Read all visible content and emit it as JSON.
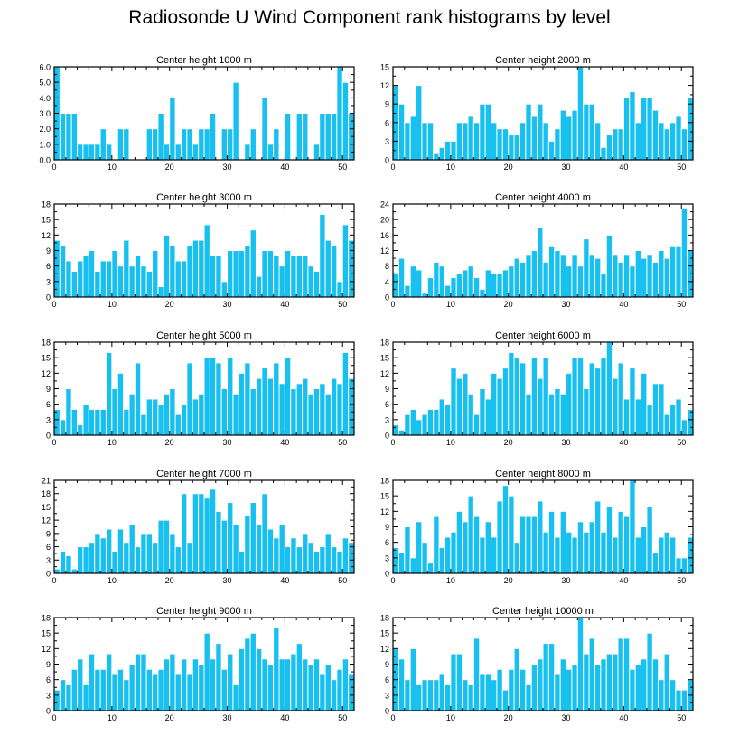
{
  "title": "Radiosonde U Wind Component rank histograms by level",
  "colors": {
    "bar": "#18c0f0",
    "bar_edge": "#ffffff",
    "axis": "#000000"
  },
  "chart_data": [
    {
      "type": "bar",
      "title": "Center height 1000 m",
      "xlim": [
        0,
        52
      ],
      "ylim": [
        0,
        6
      ],
      "xticks": [
        0,
        10,
        20,
        30,
        40,
        50
      ],
      "yticks": [
        0,
        1,
        2,
        3,
        4,
        5,
        6
      ],
      "ytick_labels": [
        "0.0",
        "1.0",
        "2.0",
        "3.0",
        "4.0",
        "5.0",
        "6.0"
      ],
      "x": [
        0,
        1,
        2,
        3,
        4,
        5,
        6,
        7,
        8,
        9,
        10,
        11,
        12,
        13,
        14,
        15,
        16,
        17,
        18,
        19,
        20,
        21,
        22,
        23,
        24,
        25,
        26,
        27,
        28,
        29,
        30,
        31,
        32,
        33,
        34,
        35,
        36,
        37,
        38,
        39,
        40,
        41,
        42,
        43,
        44,
        45,
        46,
        47,
        48,
        49,
        50,
        51
      ],
      "values": [
        6,
        3,
        3,
        3,
        1,
        1,
        1,
        1,
        2,
        1,
        0,
        2,
        2,
        0,
        0,
        0,
        2,
        2,
        3,
        1,
        4,
        1,
        2,
        2,
        1,
        2,
        2,
        3,
        0,
        2,
        2,
        5,
        0,
        1,
        2,
        0,
        4,
        1,
        2,
        0,
        3,
        0,
        3,
        3,
        0,
        1,
        3,
        3,
        3,
        6,
        5,
        3
      ]
    },
    {
      "type": "bar",
      "title": "Center height 2000 m",
      "xlim": [
        0,
        52
      ],
      "ylim": [
        0,
        15
      ],
      "xticks": [
        0,
        10,
        20,
        30,
        40,
        50
      ],
      "yticks": [
        0,
        3,
        6,
        9,
        12,
        15
      ],
      "ytick_labels": [
        "0",
        "3",
        "6",
        "9",
        "12",
        "15"
      ],
      "x": [
        0,
        1,
        2,
        3,
        4,
        5,
        6,
        7,
        8,
        9,
        10,
        11,
        12,
        13,
        14,
        15,
        16,
        17,
        18,
        19,
        20,
        21,
        22,
        23,
        24,
        25,
        26,
        27,
        28,
        29,
        30,
        31,
        32,
        33,
        34,
        35,
        36,
        37,
        38,
        39,
        40,
        41,
        42,
        43,
        44,
        45,
        46,
        47,
        48,
        49,
        50,
        51
      ],
      "values": [
        12,
        9,
        6,
        7,
        12,
        6,
        6,
        1,
        2,
        3,
        3,
        6,
        6,
        7,
        6,
        9,
        9,
        6,
        5,
        5,
        4,
        4,
        6,
        9,
        7,
        9,
        6,
        3,
        5,
        8,
        7,
        8,
        15,
        9,
        9,
        6,
        2,
        4,
        5,
        5,
        10,
        11,
        6,
        10,
        10,
        8,
        6,
        5,
        6,
        7,
        5,
        10
      ]
    },
    {
      "type": "bar",
      "title": "Center height 3000 m",
      "xlim": [
        0,
        52
      ],
      "ylim": [
        0,
        18
      ],
      "xticks": [
        0,
        10,
        20,
        30,
        40,
        50
      ],
      "yticks": [
        0,
        3,
        6,
        9,
        12,
        15,
        18
      ],
      "ytick_labels": [
        "0",
        "3",
        "6",
        "9",
        "12",
        "15",
        "18"
      ],
      "x": [
        0,
        1,
        2,
        3,
        4,
        5,
        6,
        7,
        8,
        9,
        10,
        11,
        12,
        13,
        14,
        15,
        16,
        17,
        18,
        19,
        20,
        21,
        22,
        23,
        24,
        25,
        26,
        27,
        28,
        29,
        30,
        31,
        32,
        33,
        34,
        35,
        36,
        37,
        38,
        39,
        40,
        41,
        42,
        43,
        44,
        45,
        46,
        47,
        48,
        49,
        50,
        51
      ],
      "values": [
        11,
        10,
        7,
        5,
        7,
        8,
        9,
        5,
        7,
        7,
        9,
        6,
        11,
        6,
        8,
        6,
        5,
        9,
        2,
        12,
        10,
        7,
        7,
        10,
        11,
        11,
        14,
        8,
        8,
        3,
        9,
        9,
        9,
        10,
        13,
        4,
        9,
        9,
        8,
        6,
        9,
        8,
        8,
        8,
        6,
        5,
        16,
        11,
        10,
        3,
        14,
        11
      ]
    },
    {
      "type": "bar",
      "title": "Center height 4000 m",
      "xlim": [
        0,
        52
      ],
      "ylim": [
        0,
        24
      ],
      "xticks": [
        0,
        10,
        20,
        30,
        40,
        50
      ],
      "yticks": [
        0,
        4,
        8,
        12,
        16,
        20,
        24
      ],
      "ytick_labels": [
        "0",
        "4",
        "8",
        "12",
        "16",
        "20",
        "24"
      ],
      "x": [
        0,
        1,
        2,
        3,
        4,
        5,
        6,
        7,
        8,
        9,
        10,
        11,
        12,
        13,
        14,
        15,
        16,
        17,
        18,
        19,
        20,
        21,
        22,
        23,
        24,
        25,
        26,
        27,
        28,
        29,
        30,
        31,
        32,
        33,
        34,
        35,
        36,
        37,
        38,
        39,
        40,
        41,
        42,
        43,
        44,
        45,
        46,
        47,
        48,
        49,
        50,
        51
      ],
      "values": [
        6,
        10,
        3,
        8,
        7,
        1,
        5,
        9,
        8,
        3,
        5,
        6,
        7,
        8,
        5,
        2,
        7,
        6,
        6,
        7,
        8,
        10,
        9,
        11,
        12,
        18,
        9,
        13,
        12,
        11,
        8,
        11,
        8,
        15,
        11,
        10,
        6,
        16,
        11,
        9,
        11,
        8,
        12,
        10,
        11,
        9,
        12,
        10,
        13,
        13,
        23,
        12
      ]
    },
    {
      "type": "bar",
      "title": "Center height 5000 m",
      "xlim": [
        0,
        52
      ],
      "ylim": [
        0,
        18
      ],
      "xticks": [
        0,
        10,
        20,
        30,
        40,
        50
      ],
      "yticks": [
        0,
        3,
        6,
        9,
        12,
        15,
        18
      ],
      "ytick_labels": [
        "0",
        "3",
        "6",
        "9",
        "12",
        "15",
        "18"
      ],
      "x": [
        0,
        1,
        2,
        3,
        4,
        5,
        6,
        7,
        8,
        9,
        10,
        11,
        12,
        13,
        14,
        15,
        16,
        17,
        18,
        19,
        20,
        21,
        22,
        23,
        24,
        25,
        26,
        27,
        28,
        29,
        30,
        31,
        32,
        33,
        34,
        35,
        36,
        37,
        38,
        39,
        40,
        41,
        42,
        43,
        44,
        45,
        46,
        47,
        48,
        49,
        50,
        51
      ],
      "values": [
        5,
        3,
        9,
        5,
        2,
        6,
        5,
        5,
        5,
        16,
        9,
        12,
        5,
        8,
        14,
        4,
        7,
        7,
        6,
        8,
        9,
        4,
        6,
        14,
        7,
        8,
        15,
        15,
        14,
        9,
        15,
        8,
        12,
        14,
        9,
        11,
        13,
        11,
        14,
        10,
        15,
        9,
        10,
        11,
        8,
        9,
        10,
        8,
        11,
        10,
        16,
        11
      ]
    },
    {
      "type": "bar",
      "title": "Center height 6000 m",
      "xlim": [
        0,
        52
      ],
      "ylim": [
        0,
        18
      ],
      "xticks": [
        0,
        10,
        20,
        30,
        40,
        50
      ],
      "yticks": [
        0,
        3,
        6,
        9,
        12,
        15,
        18
      ],
      "ytick_labels": [
        "0",
        "3",
        "6",
        "9",
        "12",
        "15",
        "18"
      ],
      "x": [
        0,
        1,
        2,
        3,
        4,
        5,
        6,
        7,
        8,
        9,
        10,
        11,
        12,
        13,
        14,
        15,
        16,
        17,
        18,
        19,
        20,
        21,
        22,
        23,
        24,
        25,
        26,
        27,
        28,
        29,
        30,
        31,
        32,
        33,
        34,
        35,
        36,
        37,
        38,
        39,
        40,
        41,
        42,
        43,
        44,
        45,
        46,
        47,
        48,
        49,
        50,
        51
      ],
      "values": [
        2,
        1,
        4,
        5,
        3,
        4,
        5,
        5,
        7,
        6,
        13,
        11,
        12,
        8,
        4,
        9,
        7,
        12,
        11,
        13,
        16,
        15,
        14,
        8,
        15,
        11,
        15,
        8,
        9,
        8,
        12,
        15,
        15,
        9,
        14,
        13,
        15,
        18,
        11,
        14,
        7,
        13,
        7,
        12,
        6,
        10,
        10,
        4,
        6,
        7,
        3,
        5
      ]
    },
    {
      "type": "bar",
      "title": "Center height 7000 m",
      "xlim": [
        0,
        52
      ],
      "ylim": [
        0,
        21
      ],
      "xticks": [
        0,
        10,
        20,
        30,
        40,
        50
      ],
      "yticks": [
        0,
        3,
        6,
        9,
        12,
        15,
        18,
        21
      ],
      "ytick_labels": [
        "0",
        "3",
        "6",
        "9",
        "12",
        "15",
        "18",
        "21"
      ],
      "x": [
        0,
        1,
        2,
        3,
        4,
        5,
        6,
        7,
        8,
        9,
        10,
        11,
        12,
        13,
        14,
        15,
        16,
        17,
        18,
        19,
        20,
        21,
        22,
        23,
        24,
        25,
        26,
        27,
        28,
        29,
        30,
        31,
        32,
        33,
        34,
        35,
        36,
        37,
        38,
        39,
        40,
        41,
        42,
        43,
        44,
        45,
        46,
        47,
        48,
        49,
        50,
        51
      ],
      "values": [
        1,
        5,
        4,
        1,
        6,
        6,
        7,
        9,
        8,
        10,
        5,
        10,
        7,
        11,
        6,
        9,
        9,
        7,
        12,
        12,
        9,
        6,
        18,
        7,
        18,
        18,
        17,
        19,
        14,
        12,
        16,
        11,
        5,
        13,
        16,
        11,
        18,
        10,
        8,
        11,
        6,
        8,
        6,
        9,
        7,
        5,
        6,
        9,
        6,
        5,
        8,
        7
      ]
    },
    {
      "type": "bar",
      "title": "Center height 8000 m",
      "xlim": [
        0,
        52
      ],
      "ylim": [
        0,
        18
      ],
      "xticks": [
        0,
        10,
        20,
        30,
        40,
        50
      ],
      "yticks": [
        0,
        3,
        6,
        9,
        12,
        15,
        18
      ],
      "ytick_labels": [
        "0",
        "3",
        "6",
        "9",
        "12",
        "15",
        "18"
      ],
      "x": [
        0,
        1,
        2,
        3,
        4,
        5,
        6,
        7,
        8,
        9,
        10,
        11,
        12,
        13,
        14,
        15,
        16,
        17,
        18,
        19,
        20,
        21,
        22,
        23,
        24,
        25,
        26,
        27,
        28,
        29,
        30,
        31,
        32,
        33,
        34,
        35,
        36,
        37,
        38,
        39,
        40,
        41,
        42,
        43,
        44,
        45,
        46,
        47,
        48,
        49,
        50,
        51
      ],
      "values": [
        5,
        4,
        9,
        3,
        10,
        6,
        2,
        11,
        5,
        7,
        8,
        12,
        10,
        15,
        11,
        7,
        10,
        7,
        14,
        17,
        15,
        6,
        11,
        11,
        11,
        14,
        8,
        12,
        7,
        12,
        8,
        7,
        10,
        8,
        10,
        14,
        8,
        13,
        7,
        12,
        11,
        18,
        7,
        9,
        13,
        4,
        7,
        8,
        7,
        3,
        3,
        7
      ]
    },
    {
      "type": "bar",
      "title": "Center height 9000 m",
      "xlim": [
        0,
        52
      ],
      "ylim": [
        0,
        18
      ],
      "xticks": [
        0,
        10,
        20,
        30,
        40,
        50
      ],
      "yticks": [
        0,
        3,
        6,
        9,
        12,
        15,
        18
      ],
      "ytick_labels": [
        "0",
        "3",
        "6",
        "9",
        "12",
        "15",
        "18"
      ],
      "x": [
        0,
        1,
        2,
        3,
        4,
        5,
        6,
        7,
        8,
        9,
        10,
        11,
        12,
        13,
        14,
        15,
        16,
        17,
        18,
        19,
        20,
        21,
        22,
        23,
        24,
        25,
        26,
        27,
        28,
        29,
        30,
        31,
        32,
        33,
        34,
        35,
        36,
        37,
        38,
        39,
        40,
        41,
        42,
        43,
        44,
        45,
        46,
        47,
        48,
        49,
        50,
        51
      ],
      "values": [
        4,
        6,
        5,
        8,
        10,
        5,
        11,
        8,
        8,
        11,
        7,
        8,
        6,
        9,
        11,
        11,
        8,
        7,
        8,
        10,
        11,
        7,
        10,
        7,
        10,
        9,
        15,
        10,
        13,
        8,
        11,
        5,
        12,
        14,
        15,
        12,
        10,
        9,
        16,
        10,
        10,
        11,
        13,
        10,
        9,
        10,
        7,
        9,
        6,
        8,
        10,
        7
      ]
    },
    {
      "type": "bar",
      "title": "Center height 10000 m",
      "xlim": [
        0,
        52
      ],
      "ylim": [
        0,
        18
      ],
      "xticks": [
        0,
        10,
        20,
        30,
        40,
        50
      ],
      "yticks": [
        0,
        3,
        6,
        9,
        12,
        15,
        18
      ],
      "ytick_labels": [
        "0",
        "3",
        "6",
        "9",
        "12",
        "15",
        "18"
      ],
      "x": [
        0,
        1,
        2,
        3,
        4,
        5,
        6,
        7,
        8,
        9,
        10,
        11,
        12,
        13,
        14,
        15,
        16,
        17,
        18,
        19,
        20,
        21,
        22,
        23,
        24,
        25,
        26,
        27,
        28,
        29,
        30,
        31,
        32,
        33,
        34,
        35,
        36,
        37,
        38,
        39,
        40,
        41,
        42,
        43,
        44,
        45,
        46,
        47,
        48,
        49,
        50,
        51
      ],
      "values": [
        12,
        10,
        6,
        12,
        5,
        6,
        6,
        6,
        7,
        5,
        11,
        11,
        6,
        5,
        14,
        7,
        7,
        6,
        8,
        4,
        8,
        12,
        8,
        5,
        9,
        10,
        13,
        13,
        7,
        10,
        8,
        9,
        18,
        11,
        14,
        9,
        10,
        11,
        11,
        14,
        14,
        8,
        9,
        10,
        15,
        10,
        6,
        11,
        6,
        4,
        4,
        6
      ]
    }
  ]
}
